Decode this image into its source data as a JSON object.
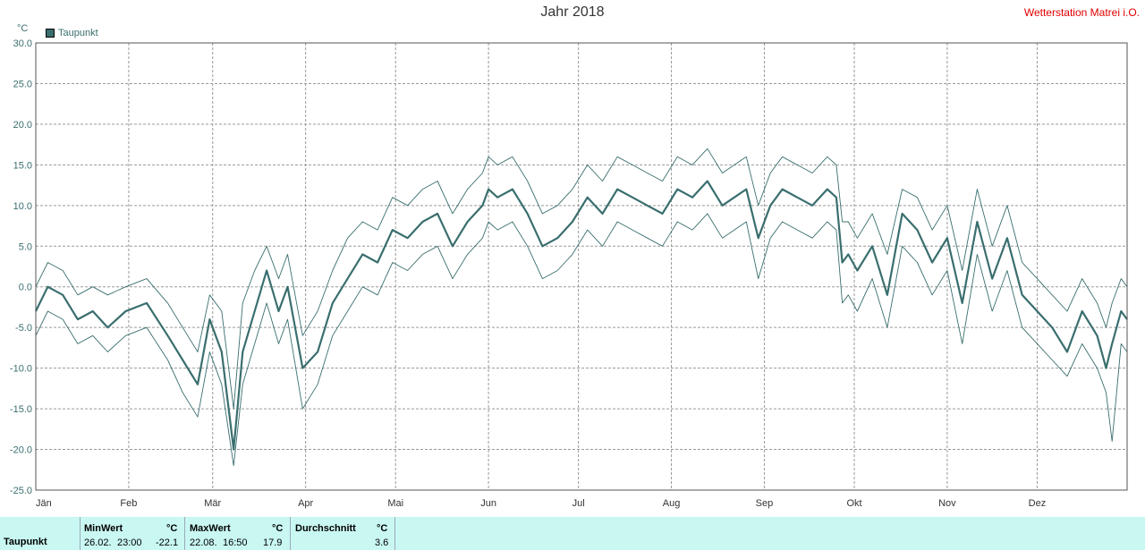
{
  "title": "Jahr 2018",
  "station": "Wetterstation Matrei i.O.",
  "unit": "°C",
  "legend": {
    "label": "Taupunkt",
    "color": "#3a6e6e"
  },
  "chart_data": {
    "type": "line",
    "title": "Jahr 2018",
    "ylabel": "°C",
    "ylim": [
      -25,
      30
    ],
    "yticks": [
      "30.0",
      "25.0",
      "20.0",
      "15.0",
      "10.0",
      "5.0",
      "0.0",
      "-5.0",
      "-10.0",
      "-15.0",
      "-20.0",
      "-25.0"
    ],
    "ytick_values": [
      30,
      25,
      20,
      15,
      10,
      5,
      0,
      -5,
      -10,
      -15,
      -20,
      -25
    ],
    "xlabels": [
      "Jän",
      "Feb",
      "Mär",
      "Apr",
      "Mai",
      "Jun",
      "Jul",
      "Aug",
      "Sep",
      "Okt",
      "Nov",
      "Dez"
    ],
    "xlim_days": [
      1,
      365
    ],
    "x_day_of_year": [
      1,
      5,
      10,
      15,
      20,
      25,
      31,
      38,
      45,
      50,
      55,
      59,
      63,
      67,
      70,
      74,
      78,
      82,
      85,
      90,
      95,
      100,
      105,
      110,
      115,
      120,
      125,
      130,
      135,
      140,
      145,
      150,
      152,
      155,
      160,
      165,
      170,
      175,
      180,
      185,
      190,
      195,
      200,
      205,
      210,
      215,
      220,
      225,
      230,
      234,
      238,
      242,
      246,
      250,
      255,
      260,
      265,
      268,
      270,
      272,
      275,
      280,
      285,
      290,
      295,
      300,
      305,
      310,
      315,
      320,
      325,
      330,
      335,
      340,
      345,
      350,
      355,
      358,
      360,
      363,
      365
    ],
    "grid": true,
    "legend_position": "top-left",
    "series": [
      {
        "name": "Taupunkt",
        "role": "mean",
        "values": [
          -3,
          0,
          -1,
          -4,
          -3,
          -5,
          -3,
          -2,
          -6,
          -9,
          -12,
          -4,
          -8,
          -20,
          -8,
          -3,
          2,
          -3,
          0,
          -10,
          -8,
          -2,
          1,
          4,
          3,
          7,
          6,
          8,
          9,
          5,
          8,
          10,
          12,
          11,
          12,
          9,
          5,
          6,
          8,
          11,
          9,
          12,
          11,
          10,
          9,
          12,
          11,
          13,
          10,
          11,
          12,
          6,
          10,
          12,
          11,
          10,
          12,
          11,
          3,
          4,
          2,
          5,
          -1,
          9,
          7,
          3,
          6,
          -2,
          8,
          1,
          6,
          -1,
          -3,
          -5,
          -8,
          -3,
          -6,
          -10,
          -7,
          -3,
          -4
        ]
      },
      {
        "name": "Taupunkt",
        "role": "max",
        "values": [
          0,
          3,
          2,
          -1,
          0,
          -1,
          0,
          1,
          -2,
          -5,
          -8,
          -1,
          -3,
          -15,
          -2,
          2,
          5,
          1,
          4,
          -6,
          -3,
          2,
          6,
          8,
          7,
          11,
          10,
          12,
          13,
          9,
          12,
          14,
          16,
          15,
          16,
          13,
          9,
          10,
          12,
          15,
          13,
          16,
          15,
          14,
          13,
          16,
          15,
          17,
          14,
          15,
          16,
          10,
          14,
          16,
          15,
          14,
          16,
          15,
          8,
          8,
          6,
          9,
          4,
          12,
          11,
          7,
          10,
          2,
          12,
          5,
          10,
          3,
          1,
          -1,
          -3,
          1,
          -2,
          -5,
          -2,
          1,
          0
        ]
      },
      {
        "name": "Taupunkt",
        "role": "min",
        "values": [
          -6,
          -3,
          -4,
          -7,
          -6,
          -8,
          -6,
          -5,
          -9,
          -13,
          -16,
          -8,
          -12,
          -22,
          -12,
          -7,
          -2,
          -7,
          -4,
          -15,
          -12,
          -6,
          -3,
          0,
          -1,
          3,
          2,
          4,
          5,
          1,
          4,
          6,
          8,
          7,
          8,
          5,
          1,
          2,
          4,
          7,
          5,
          8,
          7,
          6,
          5,
          8,
          7,
          9,
          6,
          7,
          8,
          1,
          6,
          8,
          7,
          6,
          8,
          7,
          -2,
          -1,
          -3,
          1,
          -5,
          5,
          3,
          -1,
          2,
          -7,
          4,
          -3,
          2,
          -5,
          -7,
          -9,
          -11,
          -7,
          -10,
          -13,
          -19,
          -7,
          -8
        ]
      }
    ]
  },
  "stats": {
    "row_label": "Taupunkt",
    "min": {
      "header": "MinWert",
      "unit": "°C",
      "date": "26.02.",
      "time": "23:00",
      "value": "-22.1"
    },
    "max": {
      "header": "MaxWert",
      "unit": "°C",
      "date": "22.08.",
      "time": "16:50",
      "value": "17.9"
    },
    "avg": {
      "header": "Durchschnitt",
      "unit": "°C",
      "value": "3.6"
    }
  }
}
